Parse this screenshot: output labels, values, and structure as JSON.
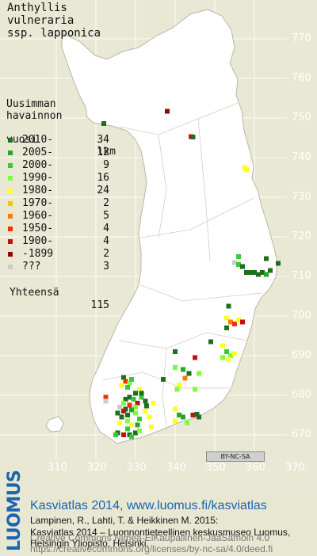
{
  "species": [
    "Anthyllis",
    "vulneraria",
    "ssp. lapponica"
  ],
  "legend": {
    "header": [
      "Uusimman",
      "havainnon",
      "vuosi"
    ],
    "count_header": "lkm",
    "rows": [
      {
        "label": "2010-",
        "count": "34",
        "color": "#1e6e1e"
      },
      {
        "label": "2005-",
        "count": "12",
        "color": "#2aa52a"
      },
      {
        "label": "2000-",
        "count": "9",
        "color": "#33cc33"
      },
      {
        "label": "1990-",
        "count": "16",
        "color": "#7cff3a"
      },
      {
        "label": "1980-",
        "count": "24",
        "color": "#ffff22"
      },
      {
        "label": "1970-",
        "count": "2",
        "color": "#ffc000"
      },
      {
        "label": "1960-",
        "count": "5",
        "color": "#ff7a00"
      },
      {
        "label": "1950-",
        "count": "4",
        "color": "#ee3300"
      },
      {
        "label": "1900-",
        "count": "4",
        "color": "#c41010"
      },
      {
        "label": "-1899",
        "count": "2",
        "color": "#8a0a0a"
      },
      {
        "label": "???",
        "count": "3",
        "color": "#cccccc"
      }
    ],
    "total_label": "Yhteensä",
    "total_count": "115"
  },
  "y_ticks": [
    "770",
    "760",
    "750",
    "740",
    "730",
    "720",
    "710",
    "700",
    "690",
    "680",
    "670"
  ],
  "x_ticks": [
    "310",
    "320",
    "330",
    "340",
    "350",
    "360",
    "370"
  ],
  "cc_badge": "BY-NC-SA",
  "footer": {
    "logo": "LUOMUS",
    "title": "Kasviatlas 2014, www.luomus.fi/kasviatlas",
    "line1": "Lampinen, R., Lahti, T. & Heikkinen M. 2015:",
    "line2": "Kasviatlas 2014 – Luonnontieteellinen keskusmuseo Luomus,",
    "line3": "Helsingin Yliopisto, Helsinki.",
    "cc1": "Creative Commons Nimeä-EiKaupallinen-JaaSamoin 4.0",
    "cc2": "https://creativecommons.org/licenses/by-nc-sa/4.0/deed.fi"
  },
  "occurrences": [
    {
      "e": 338,
      "n": 751.7,
      "c": 9
    },
    {
      "e": 322,
      "n": 748.6,
      "c": 0
    },
    {
      "e": 344,
      "n": 745.3,
      "c": 8
    },
    {
      "e": 344.5,
      "n": 745.2,
      "c": 0
    },
    {
      "e": 357.5,
      "n": 737.5,
      "c": 4
    },
    {
      "e": 358,
      "n": 737,
      "c": 4
    },
    {
      "e": 355,
      "n": 713.5,
      "c": 10
    },
    {
      "e": 356,
      "n": 713,
      "c": 2
    },
    {
      "e": 357,
      "n": 712.5,
      "c": 0
    },
    {
      "e": 358,
      "n": 711,
      "c": 0
    },
    {
      "e": 359,
      "n": 711,
      "c": 0
    },
    {
      "e": 360,
      "n": 711,
      "c": 0
    },
    {
      "e": 361,
      "n": 710.5,
      "c": 0
    },
    {
      "e": 362,
      "n": 711,
      "c": 0
    },
    {
      "e": 363,
      "n": 710.5,
      "c": 1
    },
    {
      "e": 364,
      "n": 711.5,
      "c": 0
    },
    {
      "e": 366,
      "n": 713.3,
      "c": 0
    },
    {
      "e": 363,
      "n": 714.5,
      "c": 0
    },
    {
      "e": 356,
      "n": 715,
      "c": 2
    },
    {
      "e": 353.5,
      "n": 702.5,
      "c": 0
    },
    {
      "e": 353,
      "n": 699.5,
      "c": 4
    },
    {
      "e": 354,
      "n": 698.5,
      "c": 6
    },
    {
      "e": 355,
      "n": 698,
      "c": 7
    },
    {
      "e": 356,
      "n": 699,
      "c": 4
    },
    {
      "e": 357,
      "n": 698.5,
      "c": 8
    },
    {
      "e": 353,
      "n": 697,
      "c": 0
    },
    {
      "e": 349,
      "n": 693.5,
      "c": 0
    },
    {
      "e": 352,
      "n": 692.5,
      "c": 4
    },
    {
      "e": 353,
      "n": 691,
      "c": 2
    },
    {
      "e": 354,
      "n": 690,
      "c": 3
    },
    {
      "e": 355,
      "n": 690.5,
      "c": 4
    },
    {
      "e": 353.5,
      "n": 689,
      "c": 4
    },
    {
      "e": 352,
      "n": 689.5,
      "c": 3
    },
    {
      "e": 340,
      "n": 691,
      "c": 0
    },
    {
      "e": 345,
      "n": 689.5,
      "c": 8
    },
    {
      "e": 340,
      "n": 687,
      "c": 3
    },
    {
      "e": 337,
      "n": 684,
      "c": 0
    },
    {
      "e": 342,
      "n": 686.5,
      "c": 1
    },
    {
      "e": 343.5,
      "n": 685.5,
      "c": 0
    },
    {
      "e": 342.5,
      "n": 684.3,
      "c": 6
    },
    {
      "e": 346,
      "n": 685.5,
      "c": 3
    },
    {
      "e": 341,
      "n": 682.5,
      "c": 4
    },
    {
      "e": 340.5,
      "n": 681.5,
      "c": 3
    },
    {
      "e": 345,
      "n": 681.5,
      "c": 3
    },
    {
      "e": 327,
      "n": 684.5,
      "c": 0
    },
    {
      "e": 327.5,
      "n": 683.5,
      "c": 7
    },
    {
      "e": 328.5,
      "n": 683,
      "c": 3
    },
    {
      "e": 329,
      "n": 684,
      "c": 2
    },
    {
      "e": 326.5,
      "n": 682.5,
      "c": 4
    },
    {
      "e": 328,
      "n": 682,
      "c": 2
    },
    {
      "e": 331,
      "n": 681.5,
      "c": 4
    },
    {
      "e": 330,
      "n": 680.5,
      "c": 0
    },
    {
      "e": 322.5,
      "n": 679.5,
      "c": 7
    },
    {
      "e": 322.5,
      "n": 678.5,
      "c": 10
    },
    {
      "e": 327.5,
      "n": 679,
      "c": 0
    },
    {
      "e": 328.5,
      "n": 679.5,
      "c": 0
    },
    {
      "e": 329.5,
      "n": 679,
      "c": 2
    },
    {
      "e": 331.5,
      "n": 679.5,
      "c": 2
    },
    {
      "e": 332.5,
      "n": 678.5,
      "c": 0
    },
    {
      "e": 332.8,
      "n": 677.3,
      "c": 0
    },
    {
      "e": 327,
      "n": 678,
      "c": 3
    },
    {
      "e": 326,
      "n": 677,
      "c": 10
    },
    {
      "e": 327.5,
      "n": 676.5,
      "c": 0
    },
    {
      "e": 328.5,
      "n": 677.5,
      "c": 7
    },
    {
      "e": 327,
      "n": 676,
      "c": 8
    },
    {
      "e": 325.5,
      "n": 675.5,
      "c": 0
    },
    {
      "e": 326.5,
      "n": 674.5,
      "c": 0
    },
    {
      "e": 328,
      "n": 675,
      "c": 0
    },
    {
      "e": 330,
      "n": 675.5,
      "c": 3
    },
    {
      "e": 331,
      "n": 674,
      "c": 2
    },
    {
      "e": 326,
      "n": 673,
      "c": 4
    },
    {
      "e": 328,
      "n": 673.5,
      "c": 3
    },
    {
      "e": 329,
      "n": 672.5,
      "c": 4
    },
    {
      "e": 330.5,
      "n": 672.5,
      "c": 1
    },
    {
      "e": 328,
      "n": 671.5,
      "c": 2
    },
    {
      "e": 325.5,
      "n": 670.5,
      "c": 0
    },
    {
      "e": 327,
      "n": 670,
      "c": 8
    },
    {
      "e": 328.5,
      "n": 670,
      "c": 0
    },
    {
      "e": 330,
      "n": 670.5,
      "c": 0
    },
    {
      "e": 331,
      "n": 671,
      "c": 3
    },
    {
      "e": 329,
      "n": 669.5,
      "c": 2
    },
    {
      "e": 334,
      "n": 672,
      "c": 4
    },
    {
      "e": 333.5,
      "n": 674.5,
      "c": 4
    },
    {
      "e": 340,
      "n": 676.5,
      "c": 4
    },
    {
      "e": 341,
      "n": 675,
      "c": 1
    },
    {
      "e": 340,
      "n": 673.5,
      "c": 4
    },
    {
      "e": 342,
      "n": 674.5,
      "c": 1
    },
    {
      "e": 344.5,
      "n": 675,
      "c": 8
    },
    {
      "e": 345.5,
      "n": 675.2,
      "c": 0
    },
    {
      "e": 346,
      "n": 674.5,
      "c": 0
    },
    {
      "e": 343,
      "n": 673,
      "c": 3
    },
    {
      "e": 330.5,
      "n": 678,
      "c": 8
    },
    {
      "e": 331.5,
      "n": 680.5,
      "c": 0
    },
    {
      "e": 332.5,
      "n": 676,
      "c": 4
    },
    {
      "e": 330,
      "n": 677,
      "c": 3
    },
    {
      "e": 329,
      "n": 676.3,
      "c": 1
    },
    {
      "e": 334.5,
      "n": 678,
      "c": 4
    },
    {
      "e": 325,
      "n": 670,
      "c": 2
    }
  ]
}
